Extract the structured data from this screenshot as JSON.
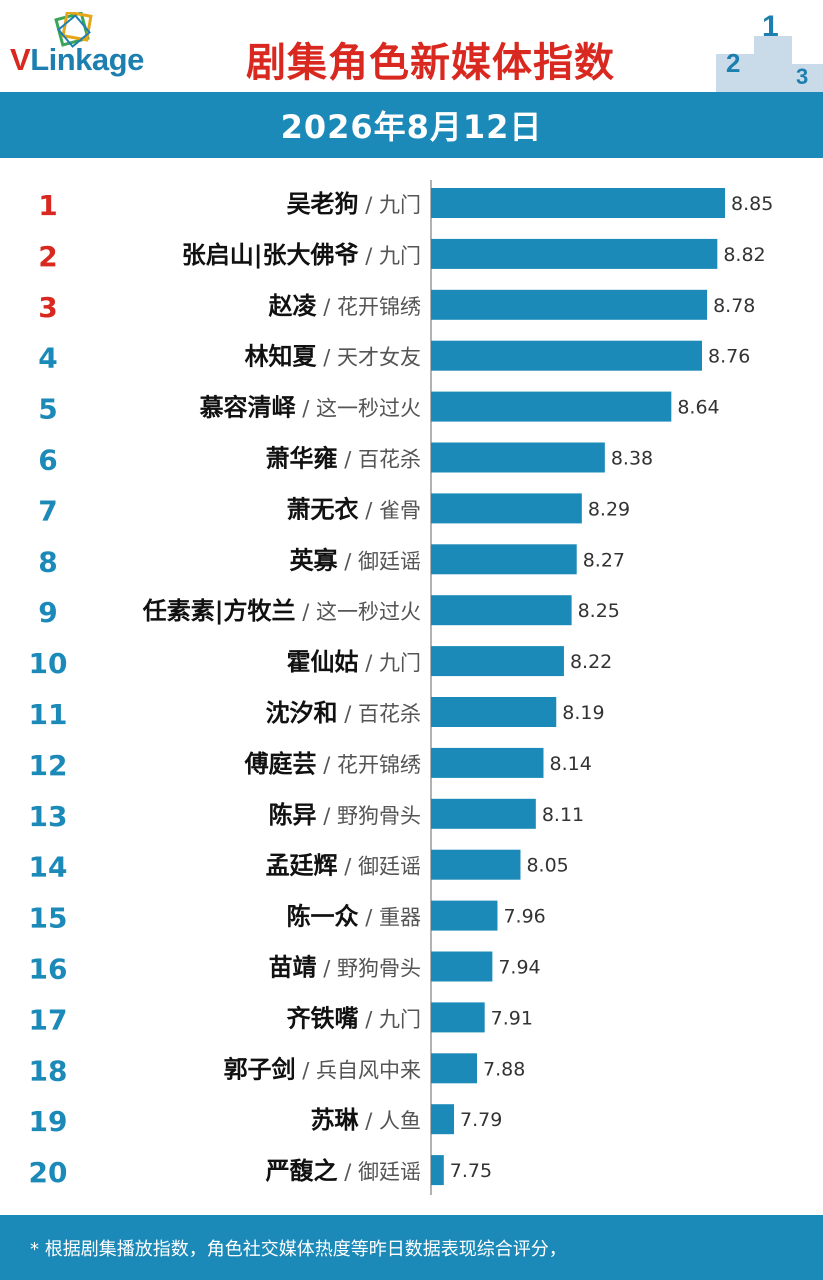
{
  "header": {
    "logo_text_v": "V",
    "logo_text_rest": "Linkage",
    "title": "剧集角色新媒体指数",
    "podium_labels": [
      "2",
      "1",
      "3"
    ]
  },
  "date": "2026年8月12日",
  "chart_data": {
    "type": "bar",
    "orientation": "horizontal",
    "title": "剧集角色新媒体指数",
    "subtitle": "2026年8月12日",
    "ranks": [
      "1",
      "2",
      "3",
      "4",
      "5",
      "6",
      "7",
      "8",
      "9",
      "10",
      "11",
      "12",
      "13",
      "14",
      "15",
      "16",
      "17",
      "18",
      "19",
      "20"
    ],
    "characters": [
      "吴老狗",
      "张启山|张大佛爷",
      "赵凌",
      "林知夏",
      "慕容清峄",
      "萧华雍",
      "萧无衣",
      "英寡",
      "任素素|方牧兰",
      "霍仙姑",
      "沈汐和",
      "傅庭芸",
      "陈异",
      "孟廷辉",
      "陈一众",
      "苗靖",
      "齐铁嘴",
      "郭子剑",
      "苏琳",
      "严馥之"
    ],
    "dramas": [
      "九门",
      "九门",
      "花开锦绣",
      "天才女友",
      "这一秒过火",
      "百花杀",
      "雀骨",
      "御廷谣",
      "这一秒过火",
      "九门",
      "百花杀",
      "花开锦绣",
      "野狗骨头",
      "御廷谣",
      "重器",
      "野狗骨头",
      "九门",
      "兵自风中来",
      "人鱼",
      "御廷谣"
    ],
    "values": [
      8.85,
      8.82,
      8.78,
      8.76,
      8.64,
      8.38,
      8.29,
      8.27,
      8.25,
      8.22,
      8.19,
      8.14,
      8.11,
      8.05,
      7.96,
      7.94,
      7.91,
      7.88,
      7.79,
      7.75
    ],
    "value_labels": [
      "8.85",
      "8.82",
      "8.78",
      "8.76",
      "8.64",
      "8.38",
      "8.29",
      "8.27",
      "8.25",
      "8.22",
      "8.19",
      "8.14",
      "8.11",
      "8.05",
      "7.96",
      "7.94",
      "7.91",
      "7.88",
      "7.79",
      "7.75"
    ],
    "xlim": [
      7.7,
      8.85
    ],
    "colors": {
      "bar": "#1c8ab8",
      "rank_top3": "#d8281f",
      "rank_other": "#1c8ab8",
      "name": "#111111",
      "drama": "#555555",
      "value": "#333333",
      "axis": "#999999"
    }
  },
  "footer": {
    "note": "* 根据剧集播放指数，角色社交媒体热度等昨日数据表现综合评分，"
  }
}
